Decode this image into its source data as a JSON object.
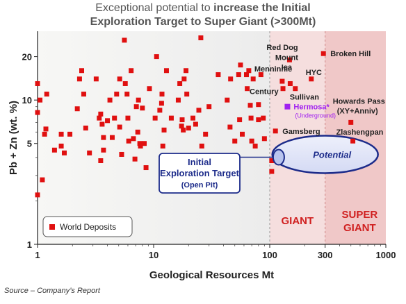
{
  "title": {
    "line1_plain": "Exceptional potential to ",
    "line1_bold": "increase the Initial",
    "line2": "Exploration Target to Super Giant (>300Mt)"
  },
  "source": "Source – Company’s Report",
  "colors": {
    "marker": "#e01010",
    "hermosa": "#a020f0",
    "giant_zone": "#f5dede",
    "super_zone": "#f0c8c8",
    "plot_bg": "#ececec",
    "potential_fill": "#d4daf4",
    "potential_stroke": "#1c2b8a",
    "callout_text": "#1c2b8a"
  },
  "chart_data": {
    "type": "scatter",
    "xscale": "log",
    "yscale": "log",
    "xlim": [
      1,
      1000
    ],
    "ylim": [
      1,
      30
    ],
    "xlabel": "Geological Resources Mt",
    "ylabel": "Pb + Zn (wt. %)",
    "x_ticks": [
      "1",
      "10",
      "100",
      "300",
      "1000"
    ],
    "x_tick_values": [
      1,
      10,
      100,
      300,
      1000
    ],
    "y_ticks": [
      "1",
      "5",
      "10",
      "20"
    ],
    "y_tick_values": [
      1,
      5,
      10,
      20
    ],
    "grid": false,
    "legend": {
      "label": "World Deposits",
      "position": "bottom-left"
    },
    "zones": [
      {
        "label": "GIANT",
        "from": 100,
        "to": 300
      },
      {
        "label": "SUPER",
        "label2": "GIANT",
        "from": 300,
        "to": 1000
      }
    ],
    "world_deposits": [
      [
        1.0,
        13
      ],
      [
        1.0,
        8.2
      ],
      [
        1.0,
        2.2
      ],
      [
        1.05,
        10
      ],
      [
        1.1,
        2.8
      ],
      [
        1.15,
        5.8
      ],
      [
        1.18,
        6.3
      ],
      [
        1.2,
        11
      ],
      [
        1.4,
        4.5
      ],
      [
        1.6,
        4.8
      ],
      [
        1.6,
        5.8
      ],
      [
        1.7,
        4.3
      ],
      [
        1.9,
        5.8
      ],
      [
        2.2,
        8.7
      ],
      [
        2.3,
        14
      ],
      [
        2.4,
        16
      ],
      [
        2.5,
        11
      ],
      [
        2.6,
        6.4
      ],
      [
        2.8,
        4.3
      ],
      [
        3.2,
        14
      ],
      [
        3.4,
        7.5
      ],
      [
        3.5,
        8
      ],
      [
        3.5,
        3.8
      ],
      [
        3.6,
        6.8
      ],
      [
        3.7,
        5.5
      ],
      [
        3.7,
        4.5
      ],
      [
        4.0,
        7.2
      ],
      [
        4.2,
        10
      ],
      [
        4.4,
        5.5
      ],
      [
        4.6,
        7.5
      ],
      [
        4.8,
        11
      ],
      [
        5.1,
        6.5
      ],
      [
        5.1,
        14
      ],
      [
        5.3,
        4.2
      ],
      [
        5.6,
        26
      ],
      [
        5.7,
        13
      ],
      [
        5.9,
        11
      ],
      [
        6.0,
        7.5
      ],
      [
        6.1,
        5.2
      ],
      [
        6.4,
        16
      ],
      [
        6.7,
        5.4
      ],
      [
        6.9,
        3.9
      ],
      [
        7.1,
        9
      ],
      [
        7.3,
        6
      ],
      [
        7.4,
        10
      ],
      [
        7.6,
        5
      ],
      [
        7.7,
        4.8
      ],
      [
        8.0,
        8.8
      ],
      [
        8.3,
        5
      ],
      [
        8.6,
        3.4
      ],
      [
        9.2,
        12
      ],
      [
        10.3,
        7.5
      ],
      [
        10.6,
        20
      ],
      [
        11.3,
        8.5
      ],
      [
        11.7,
        9.5
      ],
      [
        11.8,
        11
      ],
      [
        12.0,
        4.8
      ],
      [
        12.3,
        6.2
      ],
      [
        12.9,
        16
      ],
      [
        14.2,
        7.5
      ],
      [
        16.3,
        10
      ],
      [
        16.8,
        13
      ],
      [
        17.4,
        6.6
      ],
      [
        17.6,
        7.3
      ],
      [
        18.0,
        6.2
      ],
      [
        18.3,
        14
      ],
      [
        19.0,
        16
      ],
      [
        19.3,
        11
      ],
      [
        20.0,
        6.4
      ],
      [
        21.8,
        7.5
      ],
      [
        23.0,
        6.8
      ],
      [
        24.5,
        8.5
      ],
      [
        25.5,
        27
      ],
      [
        26.0,
        4.8
      ],
      [
        28.0,
        5.8
      ],
      [
        30.0,
        9
      ],
      [
        36.0,
        15
      ],
      [
        43.0,
        10
      ],
      [
        45.5,
        6.5
      ],
      [
        46.0,
        14
      ],
      [
        50.0,
        5.2
      ],
      [
        54.0,
        15
      ],
      [
        55.0,
        7.3
      ],
      [
        56.0,
        17.5
      ],
      [
        58.0,
        5.8
      ],
      [
        63.0,
        15
      ],
      [
        64.0,
        12
      ],
      [
        66.0,
        16
      ],
      [
        68.0,
        9.2
      ],
      [
        69.0,
        7.5
      ],
      [
        70.0,
        5.2
      ],
      [
        72.0,
        14
      ],
      [
        75.0,
        4.8
      ],
      [
        80.0,
        7.3
      ],
      [
        80.0,
        9.3
      ],
      [
        84.0,
        15
      ],
      [
        88.0,
        7.5
      ],
      [
        90.0,
        5.4
      ],
      [
        104.0,
        3.2
      ],
      [
        104.0,
        3.8
      ]
    ],
    "named_deposits": [
      {
        "name": "Red Dog",
        "x": 148,
        "y": 19
      },
      {
        "name": "Broken Hill",
        "x": 290,
        "y": 21
      },
      {
        "name": "Mount Isa",
        "x": 150,
        "y": 13
      },
      {
        "name": "HYC",
        "x": 228,
        "y": 14
      },
      {
        "name": "Menninnie",
        "x": 128,
        "y": 13.5
      },
      {
        "name": "Century",
        "x": 130,
        "y": 12
      },
      {
        "name": "Sullivan",
        "x": 166,
        "y": 12
      },
      {
        "name": "Howards Pass (XY+Anniv)",
        "x": 500,
        "y": 7
      },
      {
        "name": "Gamsberg",
        "x": 112,
        "y": 6.1
      },
      {
        "name": "Zlashengpan",
        "x": 520,
        "y": 5.2
      }
    ],
    "highlight": {
      "name": "Hermosa*",
      "sub": "(Underground)",
      "x": 142,
      "y": 9
    },
    "annotations": {
      "initial_target": {
        "line1": "Initial",
        "line2": "Exploration Target",
        "line3": "(Open Pit)",
        "x": 107,
        "y": 3.8
      },
      "potential": {
        "label": "Potential",
        "x": 300,
        "y": 4.2
      }
    }
  }
}
